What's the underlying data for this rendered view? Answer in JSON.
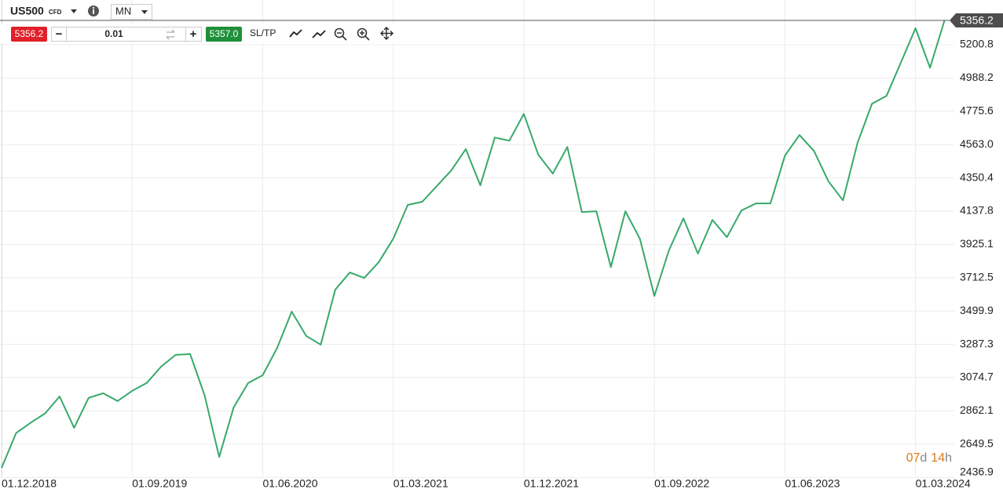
{
  "toolbar": {
    "symbol": "US500",
    "instrument_type": "CFD",
    "timeframe": "MN",
    "sell_price": "5356.2",
    "minus": "−",
    "volume": "0.01",
    "plus": "+",
    "buy_price": "5357.0",
    "sl_tp": "SL/TP"
  },
  "chart_data": {
    "type": "line",
    "categories": [
      "01.12.2018",
      null,
      null,
      null,
      null,
      null,
      null,
      null,
      null,
      "01.09.2019",
      null,
      null,
      null,
      null,
      null,
      null,
      null,
      null,
      "01.06.2020",
      null,
      null,
      null,
      null,
      null,
      null,
      null,
      null,
      "01.03.2021",
      null,
      null,
      null,
      null,
      null,
      null,
      null,
      null,
      "01.12.2021",
      null,
      null,
      null,
      null,
      null,
      null,
      null,
      null,
      "01.09.2022",
      null,
      null,
      null,
      null,
      null,
      null,
      null,
      null,
      "01.06.2023",
      null,
      null,
      null,
      null,
      null,
      null,
      null,
      null,
      "01.03.2024",
      null,
      null
    ],
    "series": [
      {
        "name": "US500",
        "color": "#37a96b",
        "values": [
          2498,
          2720,
          2786,
          2846,
          2954,
          2754,
          2945,
          2975,
          2925,
          2990,
          3040,
          3145,
          3220,
          3225,
          2960,
          2568,
          2885,
          3040,
          3090,
          3265,
          3496,
          3341,
          3285,
          3636,
          3746,
          3711,
          3812,
          3962,
          4178,
          4198,
          4298,
          4398,
          4534,
          4303,
          4608,
          4588,
          4759,
          4498,
          4378,
          4548,
          4132,
          4137,
          3781,
          4137,
          3962,
          3596,
          3887,
          4092,
          3867,
          4082,
          3972,
          4142,
          4187,
          4187,
          4493,
          4624,
          4523,
          4328,
          4207,
          4573,
          4824,
          4874,
          5089,
          5306,
          5054,
          5356.2
        ]
      }
    ],
    "current_price": 5356.2,
    "ylim": [
      2436.9,
      5356.2
    ],
    "yticks": [
      2436.9,
      2649.5,
      2862.1,
      3074.7,
      3287.3,
      3499.9,
      3712.5,
      3925.1,
      4137.8,
      4350.4,
      {
        "value": 4563,
        "label": "4563.0"
      },
      4775.6,
      4988.2,
      5200.8
    ],
    "grid": true,
    "countdown": {
      "days": "07",
      "day_unit": "d",
      "hours": "14",
      "hour_unit": "h"
    }
  }
}
